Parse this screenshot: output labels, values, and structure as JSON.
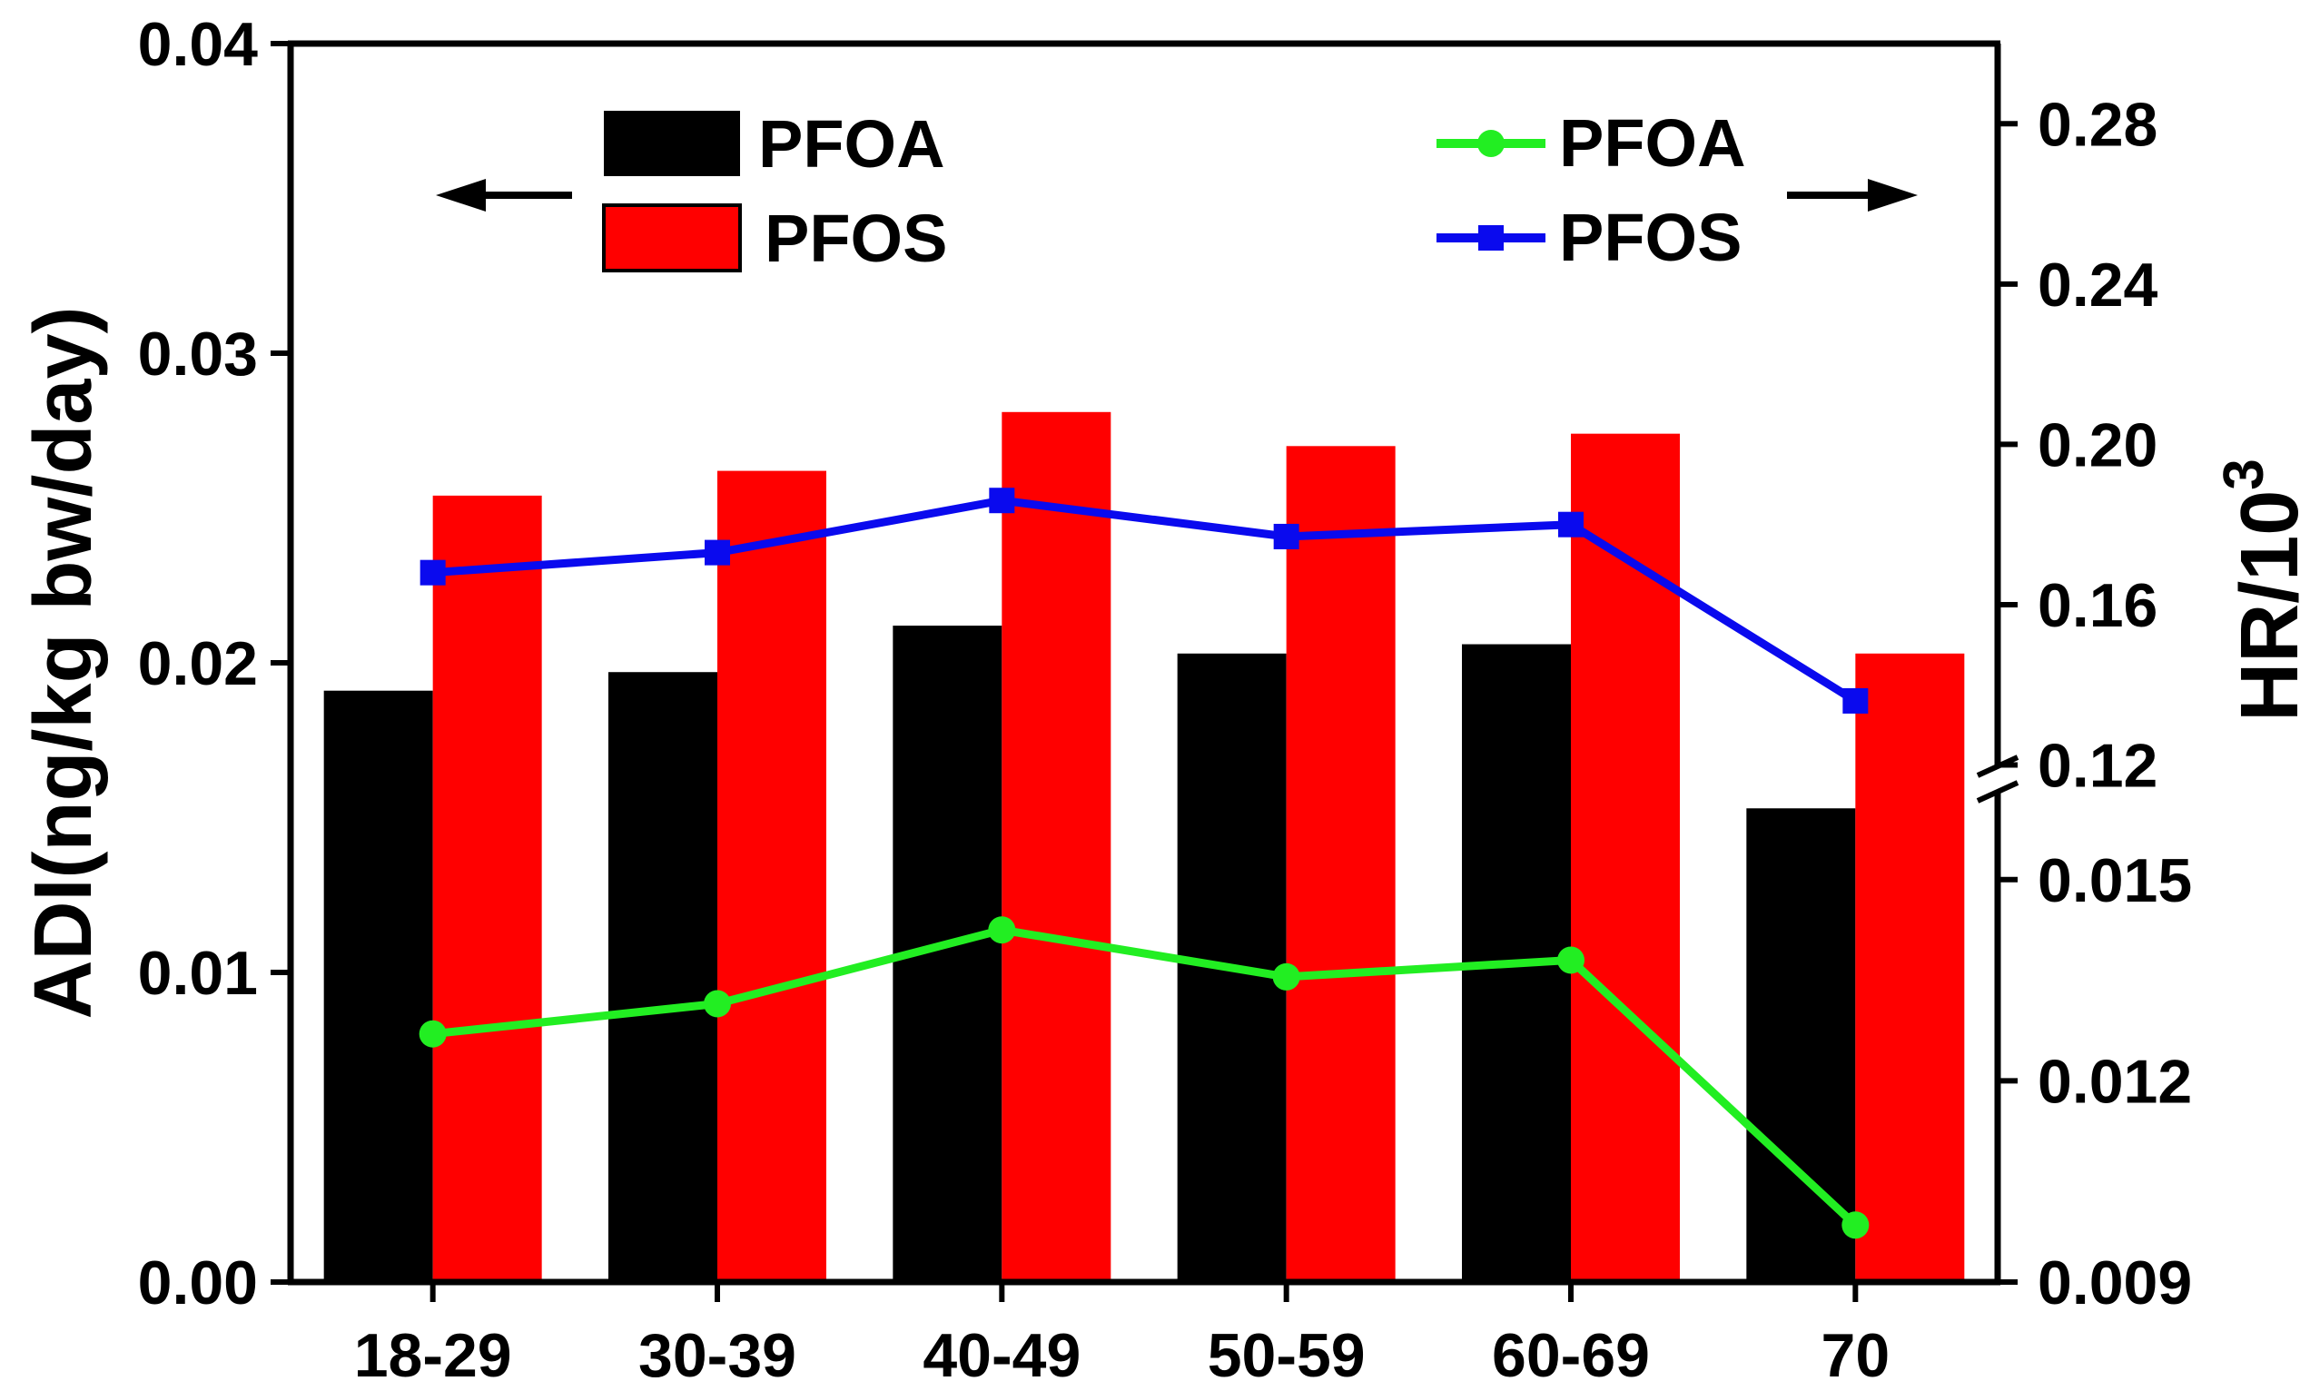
{
  "chart_data": {
    "type": "bar+line",
    "categories": [
      "18-29",
      "30-39",
      "40-49",
      "50-59",
      "60-69",
      "70"
    ],
    "left_axis": {
      "label": "ADI(ng/kg bw/day)",
      "ylim": [
        0,
        0.04
      ],
      "ticks": [
        "0.00",
        "0.01",
        "0.02",
        "0.03",
        "0.04"
      ]
    },
    "right_axis": {
      "label_base": "HR/10",
      "label_sup": "3",
      "broken": true,
      "lower_segment": {
        "ylim": [
          0.009,
          0.0165
        ],
        "ticks": [
          "0.009",
          "0.012",
          "0.015"
        ]
      },
      "upper_segment": {
        "ylim": [
          0.1165,
          0.3
        ],
        "ticks": [
          "0.12",
          "0.16",
          "0.20",
          "0.24",
          "0.28"
        ]
      }
    },
    "bar_series": [
      {
        "name": "PFOA",
        "color": "#000000",
        "values": [
          0.0191,
          0.0197,
          0.0212,
          0.0203,
          0.0206,
          0.0153
        ]
      },
      {
        "name": "PFOS",
        "color": "#ff0000",
        "values": [
          0.0254,
          0.0262,
          0.0281,
          0.027,
          0.0274,
          0.0203
        ]
      }
    ],
    "line_series": [
      {
        "name": "PFOA",
        "color": "#22ee22",
        "marker": "circle",
        "axis": "right-lower",
        "values": [
          0.0127,
          0.01315,
          0.01425,
          0.01355,
          0.0138,
          0.00985
        ]
      },
      {
        "name": "PFOS",
        "color": "#0a0aee",
        "marker": "square",
        "axis": "right-upper",
        "values": [
          0.168,
          0.173,
          0.186,
          0.177,
          0.18,
          0.136
        ]
      }
    ],
    "legend": {
      "left": {
        "items": [
          "PFOA",
          "PFOS"
        ],
        "arrow": "←"
      },
      "right": {
        "items": [
          "PFOA",
          "PFOS"
        ],
        "arrow": "→"
      }
    }
  }
}
